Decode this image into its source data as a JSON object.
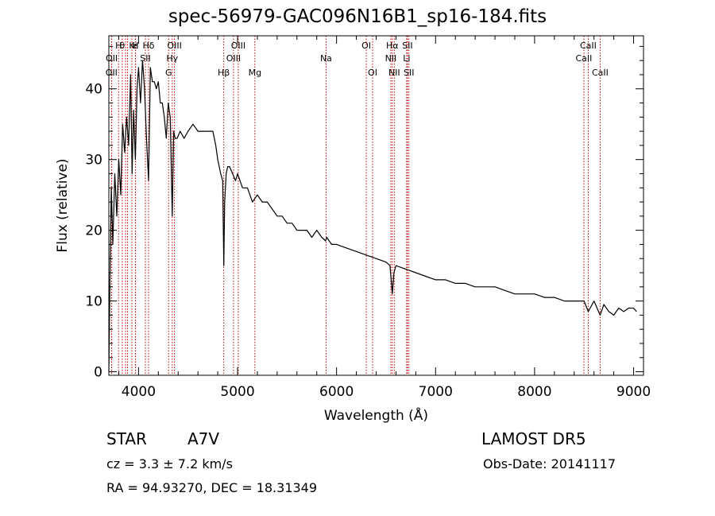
{
  "chart_data": {
    "type": "line",
    "title": "spec-56979-GAC096N16B1_sp16-184.fits",
    "xlabel": "Wavelength (Å)",
    "ylabel": "Flux (relative)",
    "xlim": [
      3700,
      9100
    ],
    "ylim": [
      -0.5,
      47.5
    ],
    "xticks": [
      4000,
      5000,
      6000,
      7000,
      8000,
      9000
    ],
    "yticks": [
      0,
      10,
      20,
      30,
      40
    ],
    "grid": false,
    "series": [
      {
        "x": [
          3700,
          3712,
          3725,
          3740,
          3760,
          3780,
          3800,
          3820,
          3840,
          3860,
          3880,
          3900,
          3920,
          3935,
          3950,
          3968,
          3985,
          4000,
          4020,
          4040,
          4060,
          4080,
          4101,
          4120,
          4140,
          4160,
          4180,
          4200,
          4220,
          4240,
          4260,
          4280,
          4300,
          4320,
          4340,
          4355,
          4370,
          4390,
          4420,
          4460,
          4500,
          4550,
          4600,
          4650,
          4700,
          4750,
          4780,
          4800,
          4830,
          4850,
          4861,
          4870,
          4885,
          4900,
          4920,
          4950,
          4980,
          5000,
          5050,
          5100,
          5150,
          5200,
          5250,
          5300,
          5350,
          5400,
          5450,
          5500,
          5550,
          5600,
          5650,
          5700,
          5750,
          5800,
          5850,
          5890,
          5900,
          5950,
          6000,
          6100,
          6200,
          6300,
          6400,
          6500,
          6540,
          6563,
          6580,
          6600,
          6700,
          6800,
          6900,
          7000,
          7100,
          7200,
          7300,
          7400,
          7500,
          7600,
          7700,
          7800,
          7900,
          8000,
          8100,
          8200,
          8300,
          8400,
          8500,
          8542,
          8600,
          8662,
          8700,
          8750,
          8800,
          8850,
          8900,
          8950,
          9000,
          9030
        ],
        "y": [
          0,
          14,
          26,
          18,
          28,
          22,
          30,
          25,
          35,
          31,
          36,
          32,
          42,
          28,
          37,
          30,
          40,
          43,
          38,
          44,
          40,
          33,
          27,
          43,
          41,
          41,
          40,
          41,
          38,
          38,
          36,
          33,
          38,
          36,
          22,
          34,
          33,
          33,
          34,
          33,
          34,
          35,
          34,
          34,
          34,
          34,
          32,
          30,
          28,
          27,
          15,
          24,
          28,
          29,
          29,
          28,
          27,
          28,
          26,
          26,
          24,
          25,
          24,
          24,
          23,
          22,
          22,
          21,
          21,
          20,
          20,
          20,
          19,
          20,
          19,
          18.5,
          19,
          18,
          18,
          17.5,
          17,
          16.5,
          16,
          15.5,
          15,
          11,
          14,
          15,
          14.5,
          14,
          13.5,
          13,
          13,
          12.5,
          12.5,
          12,
          12,
          12,
          11.5,
          11,
          11,
          11,
          10.5,
          10.5,
          10,
          10,
          10,
          8.5,
          10,
          8,
          9.5,
          8.5,
          8,
          9,
          8.5,
          9,
          9,
          8.5
        ]
      }
    ],
    "lines": [
      {
        "x": 3727,
        "label": "OII",
        "row": 3
      },
      {
        "x": 3729,
        "label": "OII",
        "row": 2
      },
      {
        "x": 3798,
        "label": "H",
        "row": 1
      },
      {
        "x": 3835,
        "label": "θ",
        "row": 1
      },
      {
        "x": 3869,
        "label": "",
        "row": 0
      },
      {
        "x": 3889,
        "label": "",
        "row": 0
      },
      {
        "x": 3933,
        "label": "K",
        "row": 1
      },
      {
        "x": 3968,
        "label": "H",
        "row": 1
      },
      {
        "x": 3970,
        "label": "ε",
        "row": 1
      },
      {
        "x": 4069,
        "label": "SII",
        "row": 2
      },
      {
        "x": 4101,
        "label": "Hδ",
        "row": 1
      },
      {
        "x": 4304,
        "label": "G",
        "row": 3
      },
      {
        "x": 4340,
        "label": "Hγ",
        "row": 2
      },
      {
        "x": 4363,
        "label": "OIII",
        "row": 1
      },
      {
        "x": 4861,
        "label": "Hβ",
        "row": 3
      },
      {
        "x": 4959,
        "label": "OIII",
        "row": 2
      },
      {
        "x": 5007,
        "label": "OIII",
        "row": 1
      },
      {
        "x": 5175,
        "label": "Mg",
        "row": 3
      },
      {
        "x": 5894,
        "label": "Na",
        "row": 2
      },
      {
        "x": 6300,
        "label": "OI",
        "row": 1
      },
      {
        "x": 6364,
        "label": "OI",
        "row": 3
      },
      {
        "x": 6548,
        "label": "NII",
        "row": 2
      },
      {
        "x": 6563,
        "label": "Hα",
        "row": 1
      },
      {
        "x": 6583,
        "label": "NII",
        "row": 3
      },
      {
        "x": 6708,
        "label": "Li",
        "row": 2
      },
      {
        "x": 6716,
        "label": "SII",
        "row": 1
      },
      {
        "x": 6731,
        "label": "SII",
        "row": 3
      },
      {
        "x": 8498,
        "label": "CaII",
        "row": 2
      },
      {
        "x": 8542,
        "label": "CaII",
        "row": 1
      },
      {
        "x": 8662,
        "label": "CaII",
        "row": 3
      }
    ]
  },
  "info": {
    "object_type": "STAR",
    "subclass": "A7V",
    "survey": "LAMOST DR5",
    "cz": "cz = 3.3 ± 7.2 km/s",
    "obs_date": "Obs-Date: 20141117",
    "coords": "RA =  94.93270, DEC =  18.31349"
  },
  "colors": {
    "spectrum": "#000000",
    "line_markers": "#c00000"
  }
}
